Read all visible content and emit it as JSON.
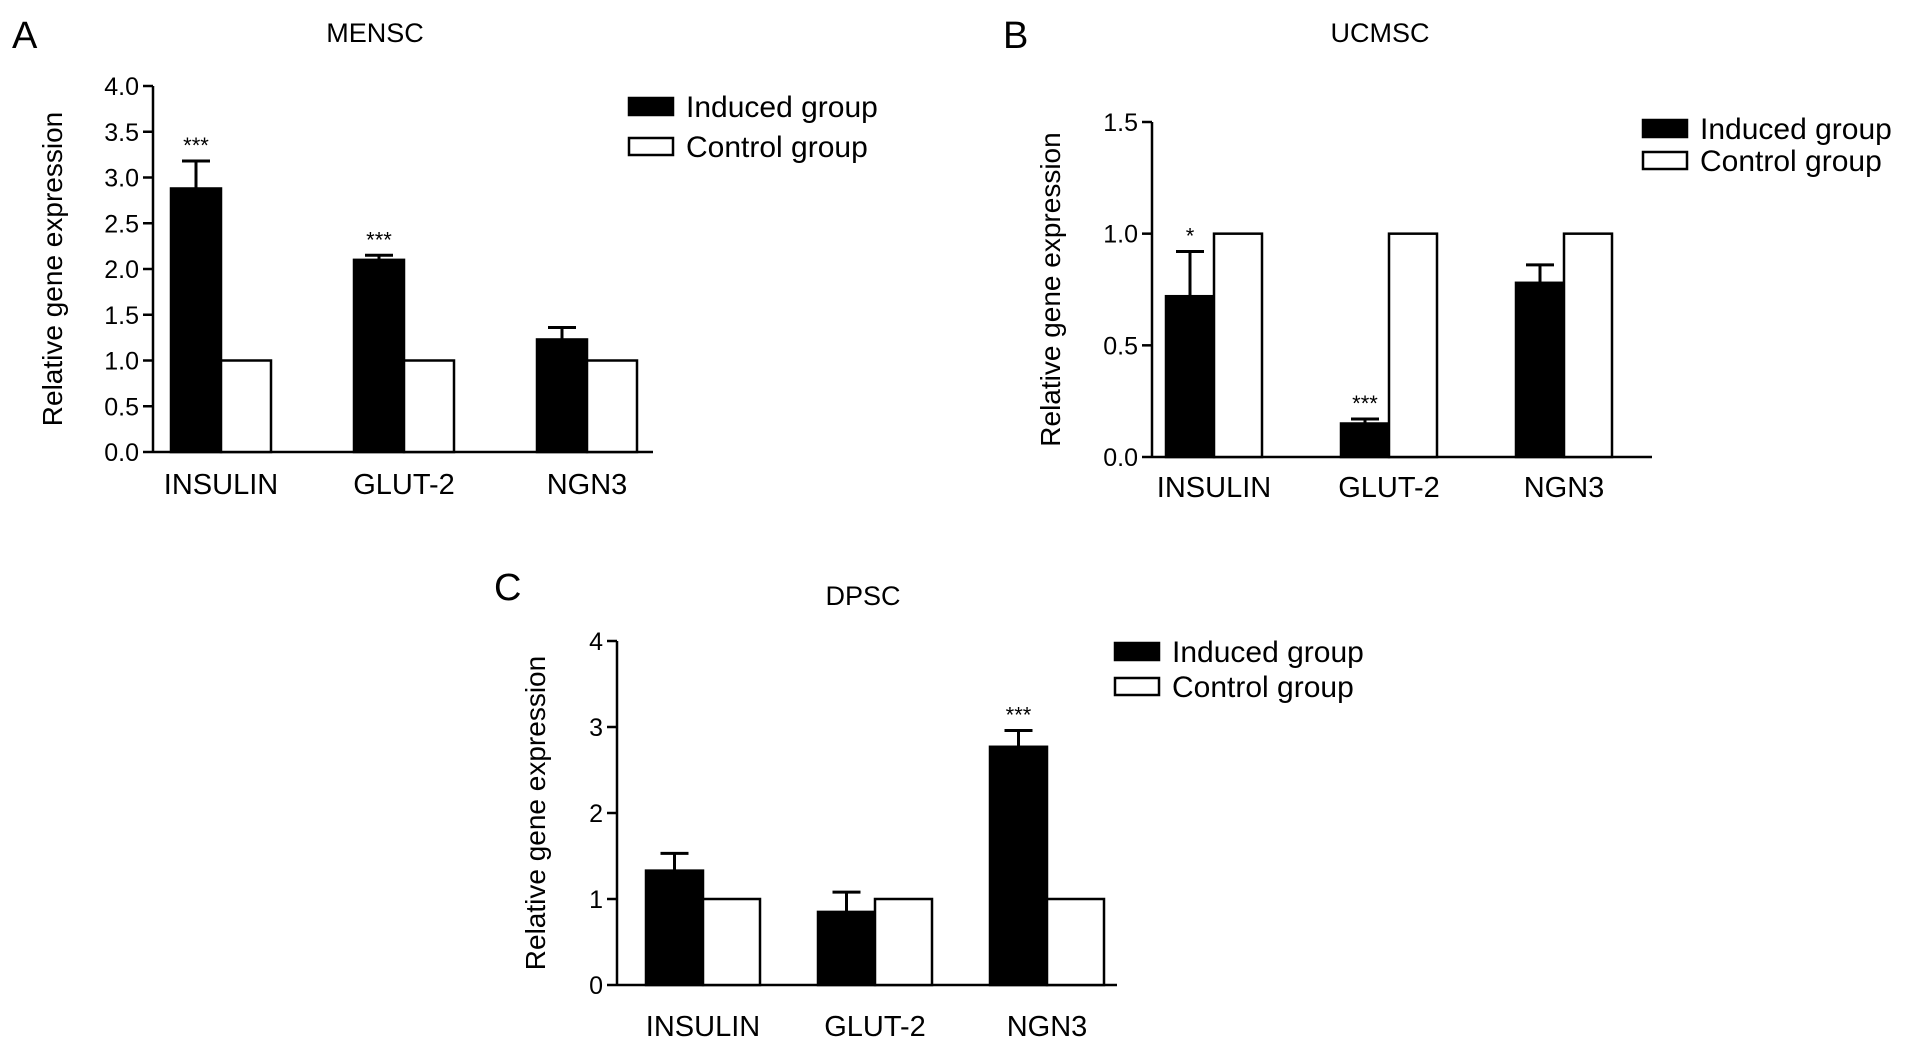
{
  "colors": {
    "induced": "#000000",
    "control": "#ffffff",
    "stroke": "#000000"
  },
  "chart_data": [
    {
      "type": "bar",
      "panel": "A",
      "title": "MENSC",
      "ylabel": "Relative gene expression",
      "xlabel": "",
      "ylim": [
        0,
        4.0
      ],
      "yticks": [
        "0.0",
        "0.5",
        "1.0",
        "1.5",
        "2.0",
        "2.5",
        "3.0",
        "3.5",
        "4.0"
      ],
      "categories": [
        "INSULIN",
        "GLUT-2",
        "NGN3"
      ],
      "series": [
        {
          "name": "Induced group",
          "values": [
            2.88,
            2.1,
            1.23
          ],
          "error": [
            0.3,
            0.05,
            0.13
          ],
          "significance": [
            "***",
            "***",
            ""
          ]
        },
        {
          "name": "Control group",
          "values": [
            1.0,
            1.0,
            1.0
          ]
        }
      ],
      "legend": "top-right",
      "grid": false
    },
    {
      "type": "bar",
      "panel": "B",
      "title": "UCMSC",
      "ylabel": "Relative gene expression",
      "xlabel": "",
      "ylim": [
        0,
        1.5
      ],
      "yticks": [
        "0.0",
        "0.5",
        "1.0",
        "1.5"
      ],
      "categories": [
        "INSULIN",
        "GLUT-2",
        "NGN3"
      ],
      "series": [
        {
          "name": "Induced group",
          "values": [
            0.72,
            0.15,
            0.78
          ],
          "error": [
            0.2,
            0.02,
            0.08
          ],
          "significance": [
            "*",
            "***",
            ""
          ]
        },
        {
          "name": "Control group",
          "values": [
            1.0,
            1.0,
            1.0
          ]
        }
      ],
      "legend": "top-right",
      "grid": false
    },
    {
      "type": "bar",
      "panel": "C",
      "title": "DPSC",
      "ylabel": "Relative gene expression",
      "xlabel": "",
      "ylim": [
        0,
        4
      ],
      "yticks": [
        "0",
        "1",
        "2",
        "3",
        "4"
      ],
      "categories": [
        "INSULIN",
        "GLUT-2",
        "NGN3"
      ],
      "series": [
        {
          "name": "Induced group",
          "values": [
            1.33,
            0.85,
            2.77
          ],
          "error": [
            0.2,
            0.23,
            0.19
          ],
          "significance": [
            "",
            "",
            "***"
          ]
        },
        {
          "name": "Control group",
          "values": [
            1.0,
            1.0,
            1.0
          ]
        }
      ],
      "legend": "top-right",
      "grid": false
    }
  ]
}
